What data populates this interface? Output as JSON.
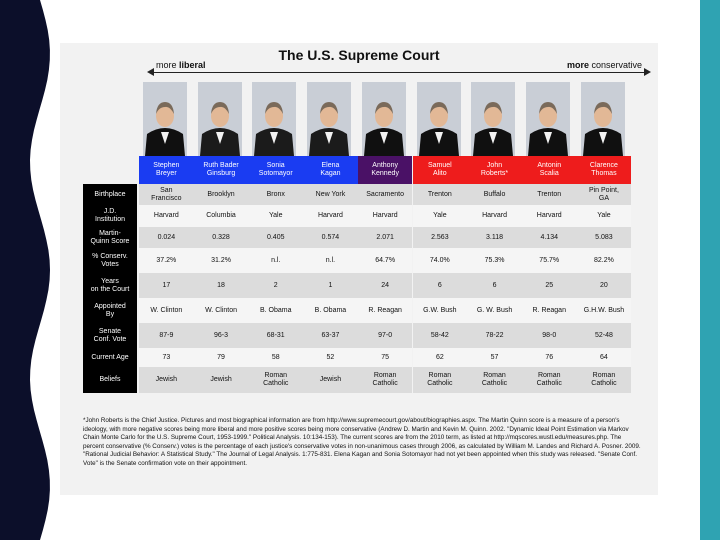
{
  "title": "The U.S. Supreme Court",
  "axis": {
    "liberal_label": "more liberal",
    "conservative_label": "more conservative"
  },
  "colors": {
    "liberal": "#1a3cf2",
    "swing": "#4a1166",
    "conservative": "#ee1c1c",
    "label_bg": "#000000",
    "left_band": "#0c0f2a",
    "right_band": "#2fa3b2"
  },
  "justices": [
    {
      "name": "Stephen\nBreyer",
      "side": "liberal"
    },
    {
      "name": "Ruth Bader\nGinsburg",
      "side": "liberal"
    },
    {
      "name": "Sonia\nSotomayor",
      "side": "liberal"
    },
    {
      "name": "Elena\nKagan",
      "side": "liberal"
    },
    {
      "name": "Anthony\nKennedy",
      "side": "swing"
    },
    {
      "name": "Samuel\nAlito",
      "side": "conservative"
    },
    {
      "name": "John\nRoberts*",
      "side": "conservative"
    },
    {
      "name": "Antonin\nScalia",
      "side": "conservative"
    },
    {
      "name": "Clarence\nThomas",
      "side": "conservative"
    }
  ],
  "rows": [
    {
      "label": "Birthplace",
      "values": [
        "San\nFrancisco",
        "Brooklyn",
        "Bronx",
        "New York",
        "Sacramento",
        "Trenton",
        "Buffalo",
        "Trenton",
        "Pin Point,\nGA"
      ]
    },
    {
      "label": "J.D.\nInstitution",
      "values": [
        "Harvard",
        "Columbia",
        "Yale",
        "Harvard",
        "Harvard",
        "Yale",
        "Harvard",
        "Harvard",
        "Yale"
      ]
    },
    {
      "label": "Martin-\nQuinn Score",
      "values": [
        "0.024",
        "0.328",
        "0.405",
        "0.574",
        "2.071",
        "2.563",
        "3.118",
        "4.134",
        "5.083"
      ]
    },
    {
      "label": "% Conserv.\nVotes",
      "values": [
        "37.2%",
        "31.2%",
        "n.l.",
        "n.l.",
        "64.7%",
        "74.0%",
        "75.3%",
        "75.7%",
        "82.2%"
      ]
    },
    {
      "label": "Years\non the Court",
      "values": [
        "17",
        "18",
        "2",
        "1",
        "24",
        "6",
        "6",
        "25",
        "20"
      ]
    },
    {
      "label": "Appointed\nBy",
      "values": [
        "W. Clinton",
        "W. Clinton",
        "B. Obama",
        "B. Obama",
        "R. Reagan",
        "G.W. Bush",
        "G. W. Bush",
        "R. Reagan",
        "G.H.W. Bush"
      ]
    },
    {
      "label": "Senate\nConf. Vote",
      "values": [
        "87-9",
        "96-3",
        "68-31",
        "63-37",
        "97-0",
        "58-42",
        "78-22",
        "98-0",
        "52-48"
      ]
    },
    {
      "label": "Current Age",
      "values": [
        "73",
        "79",
        "58",
        "52",
        "75",
        "62",
        "57",
        "76",
        "64"
      ]
    },
    {
      "label": "Beliefs",
      "values": [
        "Jewish",
        "Jewish",
        "Roman\nCatholic",
        "Jewish",
        "Roman\nCatholic",
        "Roman\nCatholic",
        "Roman\nCatholic",
        "Roman\nCatholic",
        "Roman\nCatholic"
      ]
    }
  ],
  "footnote": "*John Roberts is the Chief Justice. Pictures and most biographical information are from http://www.supremecourt.gov/about/biographies.aspx. The Martin Quinn score is a measure of a person's ideology, with more negative scores being more liberal and more positive scores being more conservative (Andrew D. Martin and Kevin M. Quinn. 2002. \"Dynamic Ideal Point Estimation via Markov Chain Monte Carlo for the U.S. Supreme Court, 1953-1999.\" Political Analysis. 10:134-153). The current scores are from the 2010 term, as listed at http://mqscores.wustl.edu/measures.php. The percent conservative (% Conserv.) votes is the percentage of each justice's conservative votes in non-unanimous cases through 2006, as calculated by William M. Landes and Richard A. Posner. 2009. \"Rational Judicial Behavior: A Statistical Study.\" The Journal of Legal Analysis. 1:775-831. Elena Kagan and Sonia Sotomayor had not yet been appointed when this study was released. \"Senate Conf. Vote\" is the Senate confirmation vote on their appointment."
}
